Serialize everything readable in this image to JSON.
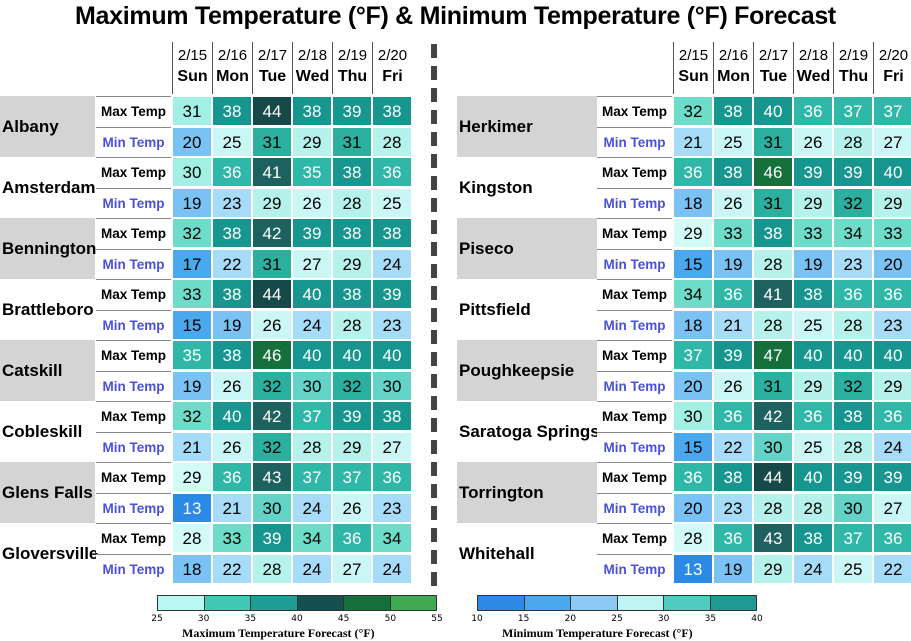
{
  "title": "Maximum Temperature (°F) & Minimum Temperature (°F) Forecast",
  "days": [
    {
      "date": "2/15",
      "weekday": "Sun"
    },
    {
      "date": "2/16",
      "weekday": "Mon"
    },
    {
      "date": "2/17",
      "weekday": "Tue"
    },
    {
      "date": "2/18",
      "weekday": "Wed"
    },
    {
      "date": "2/19",
      "weekday": "Thu"
    },
    {
      "date": "2/20",
      "weekday": "Fri"
    }
  ],
  "row_labels": {
    "max": "Max Temp",
    "min": "Min Temp"
  },
  "left_cities": [
    {
      "name": "Albany",
      "max": [
        31,
        38,
        44,
        38,
        39,
        38
      ],
      "min": [
        20,
        25,
        31,
        29,
        31,
        28
      ]
    },
    {
      "name": "Amsterdam",
      "max": [
        30,
        36,
        41,
        35,
        38,
        36
      ],
      "min": [
        19,
        23,
        29,
        26,
        28,
        25
      ]
    },
    {
      "name": "Bennington",
      "max": [
        32,
        38,
        42,
        39,
        38,
        38
      ],
      "min": [
        17,
        22,
        31,
        27,
        29,
        24
      ]
    },
    {
      "name": "Brattleboro",
      "max": [
        33,
        38,
        44,
        40,
        38,
        39
      ],
      "min": [
        15,
        19,
        26,
        24,
        28,
        23
      ]
    },
    {
      "name": "Catskill",
      "max": [
        35,
        38,
        46,
        40,
        40,
        40
      ],
      "min": [
        19,
        26,
        32,
        30,
        32,
        30
      ]
    },
    {
      "name": "Cobleskill",
      "max": [
        32,
        40,
        42,
        37,
        39,
        38
      ],
      "min": [
        21,
        26,
        32,
        28,
        29,
        27
      ]
    },
    {
      "name": "Glens Falls",
      "max": [
        29,
        36,
        43,
        37,
        37,
        36
      ],
      "min": [
        13,
        21,
        30,
        24,
        26,
        23
      ]
    },
    {
      "name": "Gloversville",
      "max": [
        28,
        33,
        39,
        34,
        36,
        34
      ],
      "min": [
        18,
        22,
        28,
        24,
        27,
        24
      ]
    }
  ],
  "right_cities": [
    {
      "name": "Herkimer",
      "max": [
        32,
        38,
        40,
        36,
        37,
        37
      ],
      "min": [
        21,
        25,
        31,
        26,
        28,
        27
      ]
    },
    {
      "name": "Kingston",
      "max": [
        36,
        38,
        46,
        39,
        39,
        40
      ],
      "min": [
        18,
        26,
        31,
        29,
        32,
        29
      ]
    },
    {
      "name": "Piseco",
      "max": [
        29,
        33,
        38,
        33,
        34,
        33
      ],
      "min": [
        15,
        19,
        28,
        19,
        23,
        20
      ]
    },
    {
      "name": "Pittsfield",
      "max": [
        34,
        36,
        41,
        38,
        36,
        36
      ],
      "min": [
        18,
        21,
        28,
        25,
        28,
        23
      ]
    },
    {
      "name": "Poughkeepsie",
      "max": [
        37,
        39,
        47,
        40,
        40,
        40
      ],
      "min": [
        20,
        26,
        31,
        29,
        32,
        29
      ]
    },
    {
      "name": "Saratoga Springs",
      "max": [
        30,
        36,
        42,
        36,
        38,
        36
      ],
      "min": [
        15,
        22,
        30,
        25,
        28,
        24
      ]
    },
    {
      "name": "Torrington",
      "max": [
        36,
        38,
        44,
        40,
        39,
        39
      ],
      "min": [
        20,
        23,
        28,
        28,
        30,
        27
      ]
    },
    {
      "name": "Whitehall",
      "max": [
        28,
        36,
        43,
        38,
        37,
        36
      ],
      "min": [
        13,
        19,
        29,
        24,
        25,
        22
      ]
    }
  ],
  "legend_max": {
    "title": "Maximum Temperature Forecast (°F)",
    "ticks": [
      "25",
      "30",
      "35",
      "40",
      "45",
      "50",
      "55"
    ],
    "colors": [
      "#b8f7f2",
      "#42c9b5",
      "#1f9e96",
      "#164f4f",
      "#16703c",
      "#3faa52"
    ]
  },
  "legend_min": {
    "title": "Minimum Temperature Forecast (°F)",
    "ticks": [
      "10",
      "15",
      "20",
      "25",
      "30",
      "35",
      "40"
    ],
    "colors": [
      "#2a8ae6",
      "#4aa8ee",
      "#8ccaf4",
      "#bff6f4",
      "#4fcbc0",
      "#1e9a92"
    ]
  }
}
